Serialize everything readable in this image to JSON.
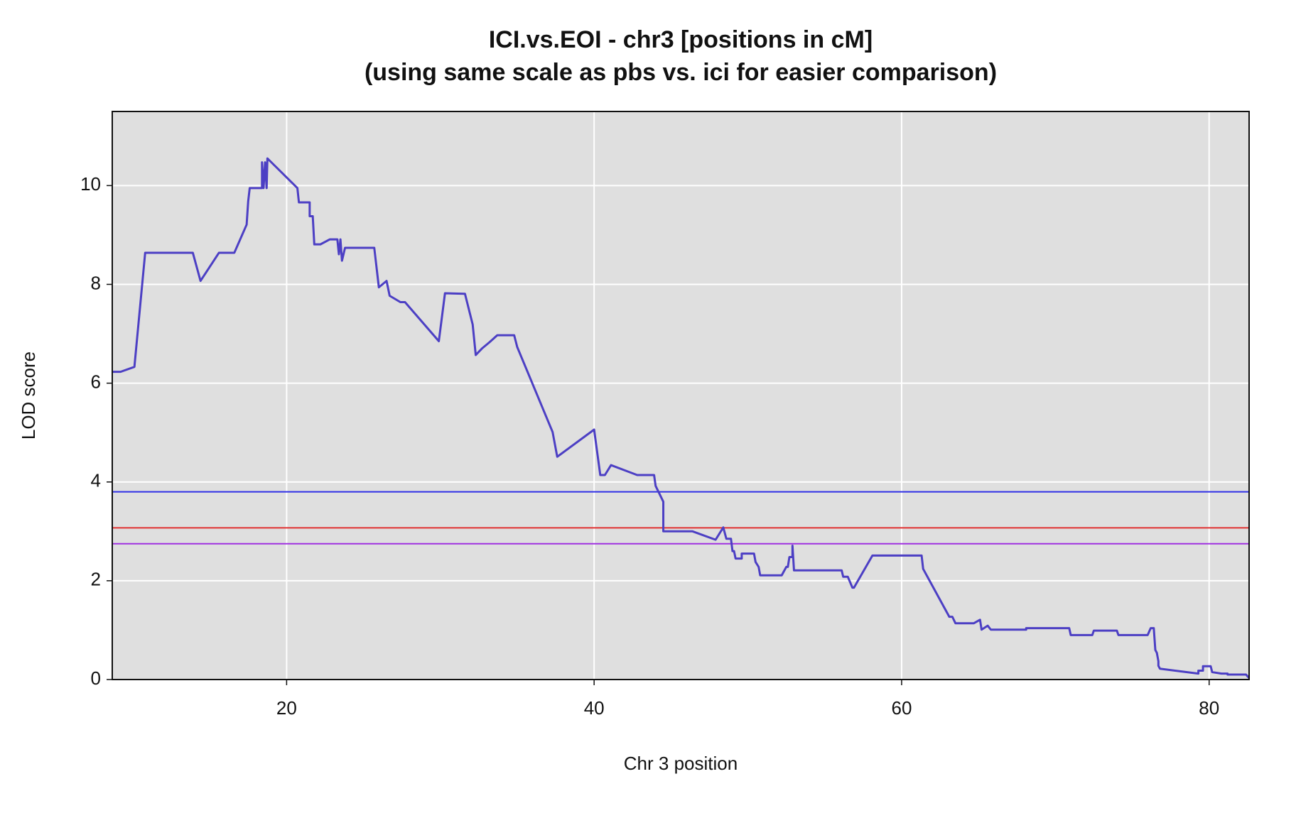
{
  "chart_data": {
    "type": "line",
    "title": "ICI.vs.EOI - chr3 [positions in cM]",
    "subtitle": "(using same scale as pbs  vs. ici for easier comparison)",
    "x_label": "Chr 3 position",
    "y_label": "LOD score",
    "xlim": [
      8.66,
      82.6
    ],
    "ylim": [
      0,
      11.5
    ],
    "xticks": [
      20,
      40,
      60,
      80
    ],
    "yticks": [
      0,
      2,
      4,
      6,
      8,
      10
    ],
    "grid": true,
    "x": [
      8.66,
      9.2,
      10.1,
      10.8,
      13.9,
      14.4,
      15.6,
      16.6,
      17.4,
      17.5,
      17.6,
      18.4,
      18.4,
      18.5,
      18.6,
      18.7,
      18.75,
      20.7,
      20.8,
      21.5,
      21.5,
      21.7,
      21.8,
      22.2,
      22.8,
      23.3,
      23.4,
      23.5,
      23.6,
      23.8,
      25.7,
      26.0,
      26.5,
      26.7,
      27.4,
      27.7,
      29.9,
      30.3,
      31.6,
      32.1,
      32.3,
      32.7,
      33.2,
      33.7,
      34.8,
      35.0,
      37.3,
      37.6,
      40.0,
      40.4,
      40.7,
      41.1,
      42.8,
      43.9,
      44.0,
      44.5,
      44.5,
      46.4,
      47.9,
      48.4,
      48.6,
      48.9,
      49.0,
      49.1,
      49.2,
      49.6,
      49.6,
      50.4,
      50.5,
      50.7,
      50.8,
      52.2,
      52.5,
      52.6,
      52.7,
      52.9,
      52.9,
      53.0,
      56.1,
      56.2,
      56.5,
      56.8,
      56.9,
      58.1,
      61.3,
      61.4,
      63.1,
      63.3,
      63.5,
      64.7,
      65.1,
      65.2,
      65.6,
      65.8,
      68.1,
      68.1,
      70.9,
      71.0,
      72.4,
      72.5,
      74.0,
      74.1,
      76.0,
      76.2,
      76.4,
      76.5,
      76.6,
      76.7,
      76.7,
      76.8,
      79.3,
      79.3,
      79.6,
      79.6,
      80.1,
      80.2,
      80.8,
      81.2,
      81.2,
      82.4,
      82.6
    ],
    "series": [
      {
        "color": "#4c3fc4",
        "values": [
          6.23,
          6.23,
          6.33,
          8.64,
          8.64,
          8.07,
          8.64,
          8.64,
          9.21,
          9.68,
          9.95,
          9.95,
          10.47,
          9.95,
          10.47,
          9.95,
          10.55,
          9.95,
          9.66,
          9.66,
          9.38,
          9.38,
          8.81,
          8.81,
          8.91,
          8.91,
          8.61,
          8.91,
          8.48,
          8.74,
          8.74,
          7.94,
          8.07,
          7.77,
          7.64,
          7.64,
          6.85,
          7.82,
          7.81,
          7.19,
          6.57,
          6.7,
          6.83,
          6.97,
          6.97,
          6.73,
          5.01,
          4.51,
          5.06,
          4.14,
          4.14,
          4.34,
          4.14,
          4.14,
          3.92,
          3.6,
          3.0,
          3.0,
          2.83,
          3.08,
          2.85,
          2.85,
          2.6,
          2.6,
          2.45,
          2.45,
          2.55,
          2.55,
          2.38,
          2.28,
          2.11,
          2.11,
          2.28,
          2.28,
          2.48,
          2.48,
          2.71,
          2.21,
          2.21,
          2.08,
          2.08,
          1.86,
          1.86,
          2.51,
          2.51,
          2.24,
          1.27,
          1.27,
          1.14,
          1.14,
          1.21,
          1.01,
          1.09,
          1.01,
          1.01,
          1.04,
          1.04,
          0.9,
          0.9,
          0.99,
          0.99,
          0.9,
          0.9,
          1.04,
          1.04,
          0.6,
          0.54,
          0.37,
          0.28,
          0.22,
          0.12,
          0.18,
          0.18,
          0.27,
          0.27,
          0.15,
          0.12,
          0.12,
          0.1,
          0.1,
          0.03
        ]
      }
    ],
    "thresholds": [
      {
        "value": 3.8,
        "color": "#2f2fe6"
      },
      {
        "value": 3.07,
        "color": "#e03030"
      },
      {
        "value": 2.75,
        "color": "#a030e0"
      }
    ]
  }
}
